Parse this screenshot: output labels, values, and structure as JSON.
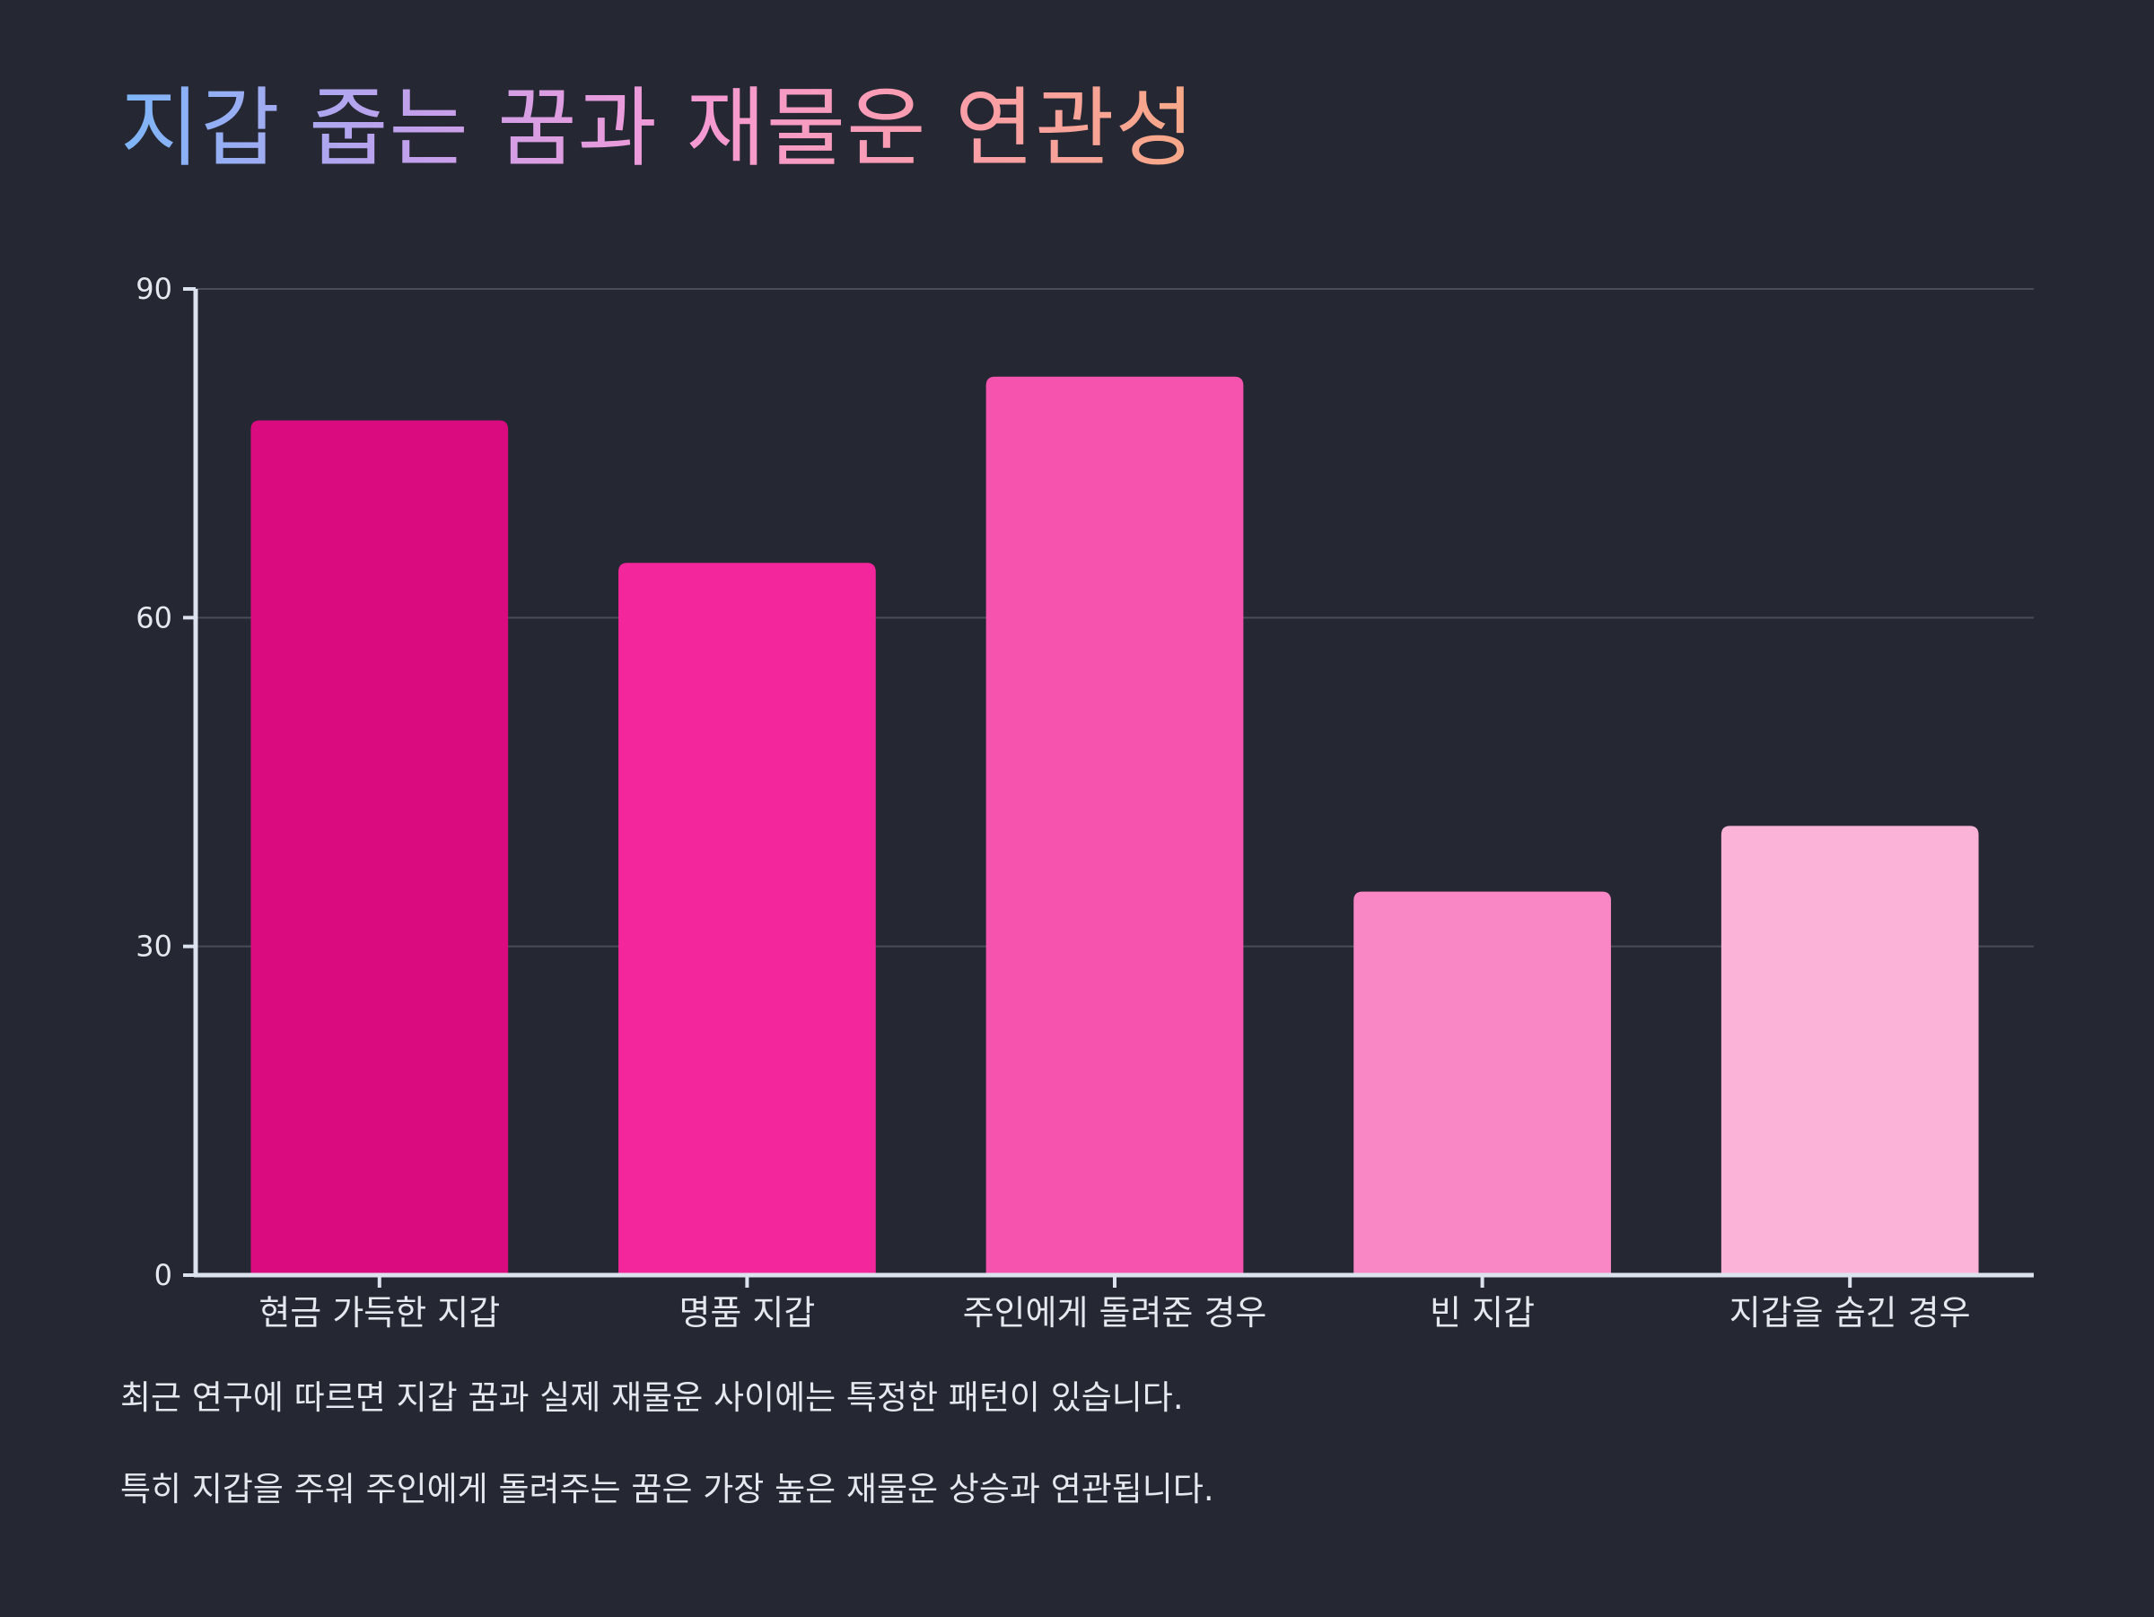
{
  "title": "지갑 줍는 꿈과 재물운 연관성",
  "captions": [
    "최근 연구에 따르면 지갑 꿈과 실제 재물운 사이에는 특정한 패턴이 있습니다.",
    "특히 지갑을 주워 주인에게 돌려주는 꿈은 가장 높은 재물운 상승과 연관됩니다."
  ],
  "colors": {
    "background": "#252733",
    "axis": "#dde3ee",
    "grid": "#4a4c57",
    "text": "#e6e8ef",
    "bars": [
      "#d90b7e",
      "#f4269b",
      "#f553ad",
      "#f987c5",
      "#fbb4d8"
    ]
  },
  "chart_data": {
    "type": "bar",
    "categories": [
      "현금 가득한 지갑",
      "명품 지갑",
      "주인에게 돌려준 경우",
      "빈 지갑",
      "지갑을 숨긴 경우"
    ],
    "values": [
      78,
      65,
      82,
      35,
      41
    ],
    "ylim": [
      0,
      90
    ],
    "yticks": [
      0,
      30,
      60,
      90
    ],
    "grid": true,
    "xlabel": "",
    "ylabel": ""
  }
}
